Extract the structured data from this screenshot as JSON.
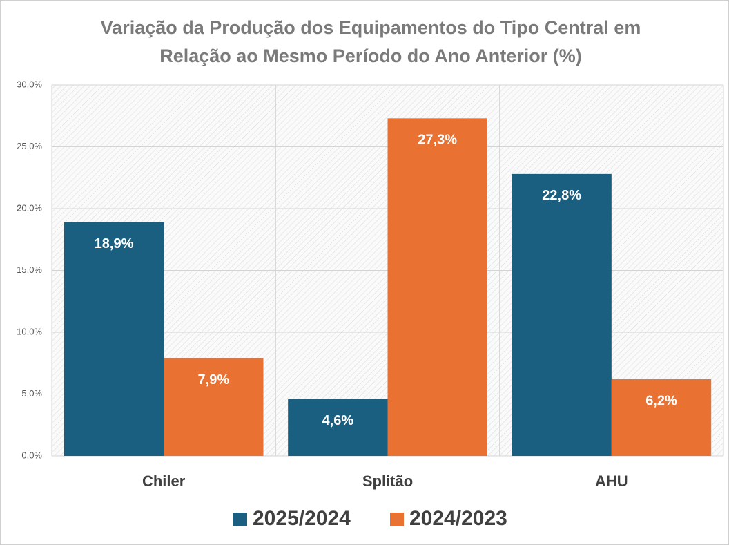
{
  "chart_data": {
    "type": "bar",
    "title": [
      "Variação da Produção dos Equipamentos do Tipo Central em",
      "Relação ao Mesmo Período do Ano Anterior (%)"
    ],
    "categories": [
      "Chiler",
      "Splitão",
      "AHU"
    ],
    "series": [
      {
        "name": "2025/2024",
        "color": "#1a5e80",
        "values": [
          18.9,
          4.6,
          22.8
        ],
        "value_labels": [
          "18,9%",
          "4,6%",
          "22,8%"
        ]
      },
      {
        "name": "2024/2023",
        "color": "#e97132",
        "values": [
          7.9,
          27.3,
          6.2
        ],
        "value_labels": [
          "7,9%",
          "27,3%",
          "6,2%"
        ]
      }
    ],
    "ylim": [
      0,
      30
    ],
    "yticks": [
      {
        "value": 0,
        "label": "0,0%"
      },
      {
        "value": 5,
        "label": "5,0%"
      },
      {
        "value": 10,
        "label": "10,0%"
      },
      {
        "value": 15,
        "label": "15,0%"
      },
      {
        "value": 20,
        "label": "20,0%"
      },
      {
        "value": 25,
        "label": "25,0%"
      },
      {
        "value": 30,
        "label": "30,0%"
      }
    ],
    "grid": true,
    "legend": "bottom"
  }
}
